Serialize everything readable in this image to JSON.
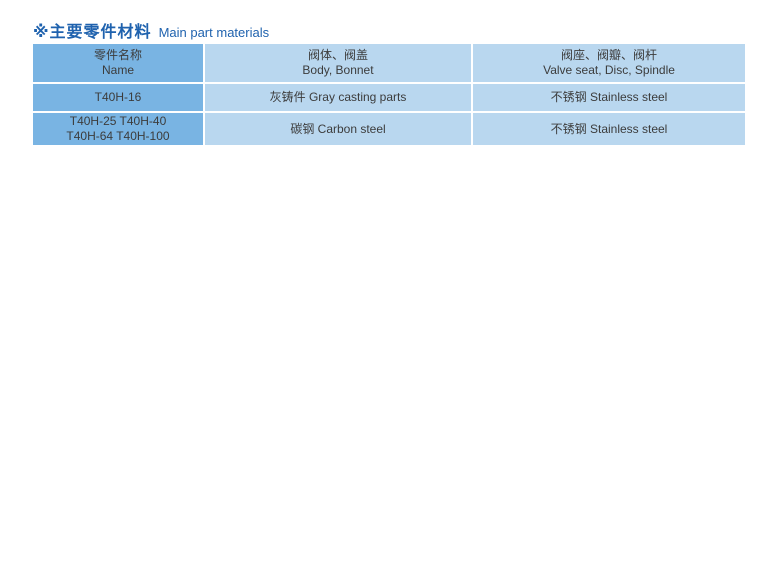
{
  "title": {
    "cn": "※主要零件材料",
    "en": "Main part materials"
  },
  "colors": {
    "page_bg": "#ffffff",
    "title_color": "#1f62ae",
    "cell_text": "#3c3c3c",
    "cell_dark": "#79b4e3",
    "cell_light": "#b9d7ef"
  },
  "table": {
    "columns": [
      {
        "cn": "零件名称",
        "en": "Name"
      },
      {
        "cn": "阀体、阀盖",
        "en": "Body, Bonnet"
      },
      {
        "cn": "阀座、阀瓣、阀杆",
        "en": "Valve seat, Disc, Spindle"
      }
    ],
    "rows": [
      {
        "name": "T40H-16",
        "body_bonnet": "灰铸件  Gray casting parts",
        "seat_disc_spindle": "不锈钢  Stainless steel"
      },
      {
        "name_line1": "T40H-25    T40H-40",
        "name_line2": "T40H-64  T40H-100",
        "body_bonnet": "碳钢  Carbon steel",
        "seat_disc_spindle": "不锈钢  Stainless steel"
      }
    ]
  }
}
